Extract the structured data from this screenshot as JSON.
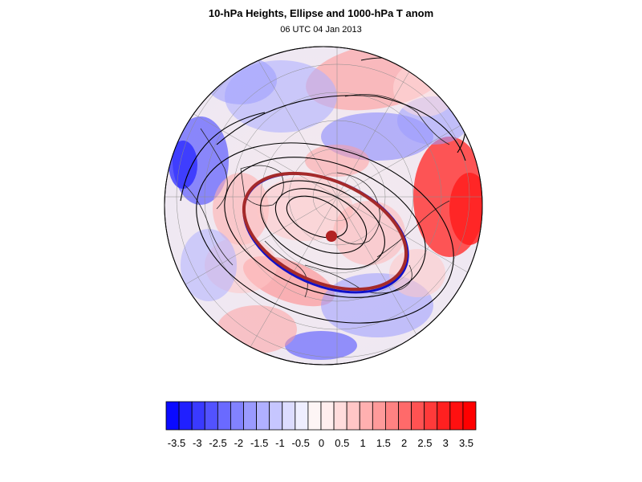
{
  "header": {
    "title": "10-hPa Heights, Ellipse and 1000-hPa T anom",
    "subtitle": "06 UTC 04 Jan 2013"
  },
  "map": {
    "projection": "orthographic-north-polar",
    "colors": {
      "ellipse_red": "#a52a2a",
      "ellipse_blue": "#1010c8",
      "contour": "#000000",
      "center_marker": "#b22222"
    }
  },
  "colorbar": {
    "tick_labels": [
      "-3.5",
      "-3",
      "-2.5",
      "-2",
      "-1.5",
      "-1",
      "-0.5",
      "0",
      "0.5",
      "1",
      "1.5",
      "2",
      "2.5",
      "3",
      "3.5"
    ],
    "colors": [
      "#0a0aff",
      "#2020ff",
      "#3a3aff",
      "#5252ff",
      "#6a6aff",
      "#8282ff",
      "#9a9aff",
      "#b0b0ff",
      "#c6c6ff",
      "#dcdcff",
      "#eeeeff",
      "#fdf5f5",
      "#ffeeee",
      "#ffdcdc",
      "#ffc6c6",
      "#ffb0b0",
      "#ff9a9a",
      "#ff8282",
      "#ff6a6a",
      "#ff5252",
      "#ff3a3a",
      "#ff2020",
      "#ff1010",
      "#ff0000"
    ]
  }
}
